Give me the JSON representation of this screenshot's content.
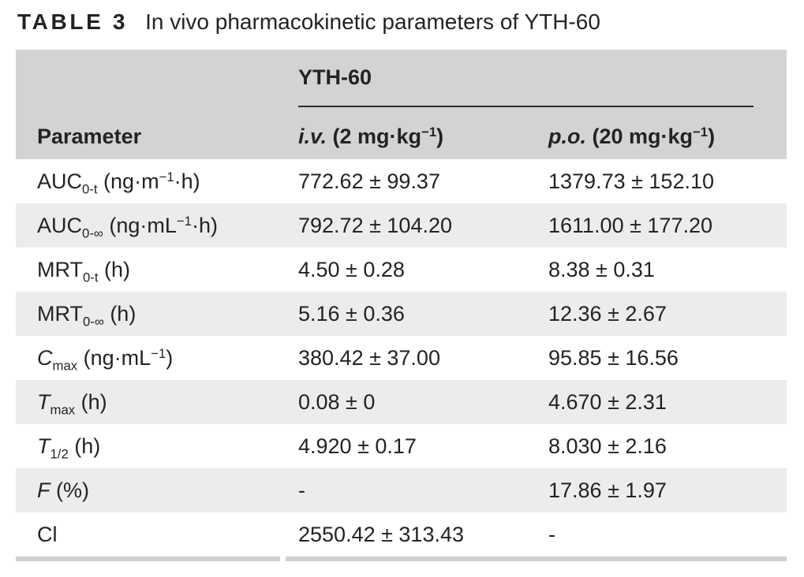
{
  "title": {
    "label": "TABLE 3",
    "text": "In vivo pharmacokinetic parameters of YTH-60"
  },
  "table": {
    "group_header": "YTH-60",
    "columns": [
      "Parameter",
      "*i.v.* (2 mg·kg^−1^)",
      "*p.o.* (20 mg·kg^−1^)"
    ],
    "rows": [
      {
        "parameter": "AUC~0-t~ (ng·m^−1^·h)",
        "iv": "772.62 ± 99.37",
        "po": "1379.73 ± 152.10"
      },
      {
        "parameter": "AUC~0-∞~ (ng·mL^−1^·h)",
        "iv": "792.72 ± 104.20",
        "po": "1611.00 ± 177.20"
      },
      {
        "parameter": "MRT~0-t~ (h)",
        "iv": "4.50 ± 0.28",
        "po": "8.38 ± 0.31"
      },
      {
        "parameter": "MRT~0-∞~ (h)",
        "iv": "5.16 ± 0.36",
        "po": "12.36 ± 2.67"
      },
      {
        "parameter": "*C*~max~ (ng·mL^−1^)",
        "iv": "380.42 ± 37.00",
        "po": "95.85 ± 16.56"
      },
      {
        "parameter": "*T*~max~ (h)",
        "iv": "0.08 ± 0",
        "po": "4.670 ± 2.31"
      },
      {
        "parameter": "*T*~1/2~ (h)",
        "iv": "4.920 ± 0.17",
        "po": "8.030 ± 2.16"
      },
      {
        "parameter": "*F* (%)",
        "iv": "-",
        "po": "17.86 ± 1.97"
      },
      {
        "parameter": "Cl",
        "iv": "2550.42 ± 313.43",
        "po": "-"
      }
    ]
  },
  "colors": {
    "header_bg": "#d2d3d5",
    "stripe_bg": "#ebeced",
    "text": "#262223",
    "rule": "#2e2b2c",
    "border": "#cfd0d2"
  }
}
